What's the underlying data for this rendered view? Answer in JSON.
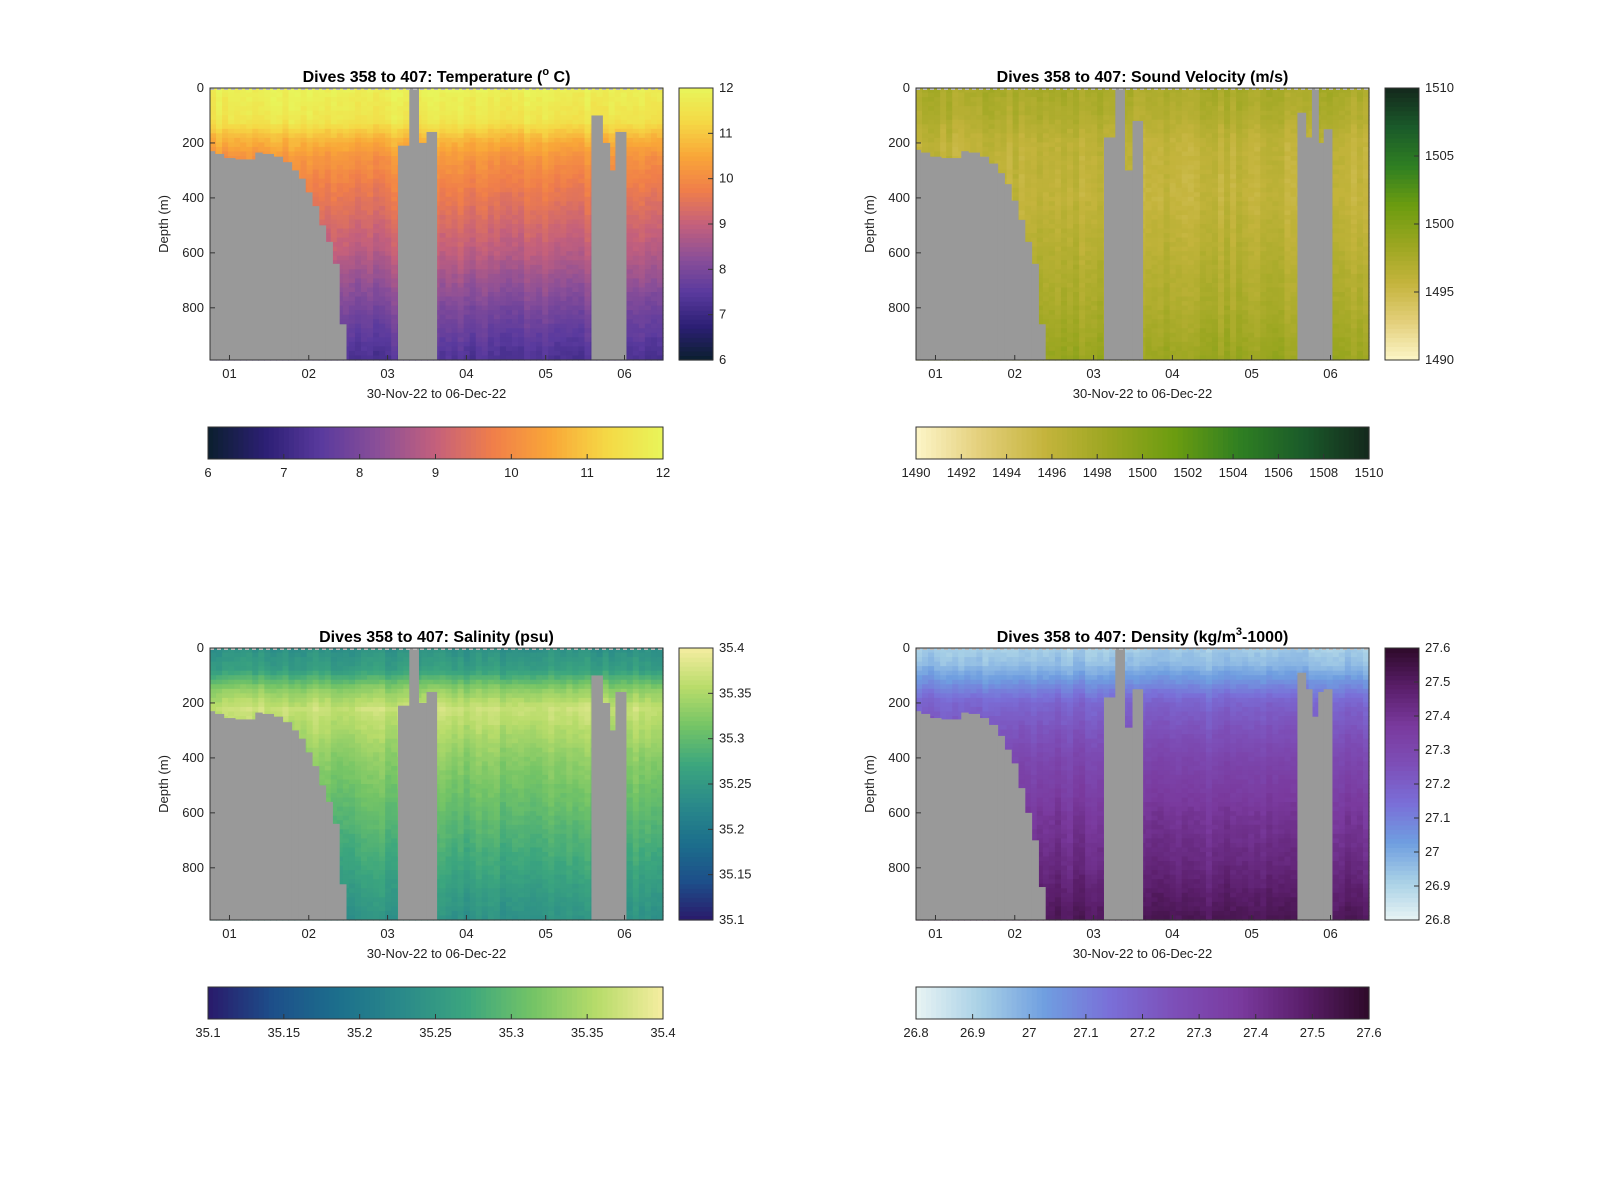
{
  "figure": {
    "layout": "2x2 grid of depth-time sections, each with a vertical and a horizontal colorbar",
    "land_color": "#999999"
  },
  "chart_data": [
    {
      "type": "heatmap",
      "id": "temperature",
      "title": "Dives 358 to 407: Temperature (",
      "title_unit_sup": "o",
      "title_tail": " C)",
      "xlabel": "30-Nov-22 to 06-Dec-22",
      "ylabel": "Depth (m)",
      "x_ticks": [
        "01",
        "02",
        "03",
        "04",
        "05",
        "06"
      ],
      "y_ticks": [
        0,
        200,
        400,
        600,
        800
      ],
      "ylim": [
        0,
        990
      ],
      "clim": [
        6,
        12
      ],
      "cbar_v_ticks": [
        "6",
        "7",
        "8",
        "9",
        "10",
        "11",
        "12"
      ],
      "cbar_h_ticks": [
        "6",
        "7",
        "8",
        "9",
        "10",
        "11",
        "12"
      ],
      "colormap": [
        "#0a1f2e",
        "#2c1f74",
        "#5a3a9e",
        "#8b4f98",
        "#c4607c",
        "#f07e4a",
        "#f9a638",
        "#f5d845",
        "#e8f55a"
      ],
      "profile": {
        "depths": [
          0,
          120,
          180,
          250,
          400,
          600,
          800,
          990
        ],
        "values": [
          11.9,
          11.6,
          10.8,
          10.2,
          9.6,
          8.9,
          8.0,
          7.3
        ]
      },
      "masks": "ctd"
    },
    {
      "type": "heatmap",
      "id": "sound-velocity",
      "title": "Dives 358 to 407: Sound Velocity (m/s)",
      "xlabel": "30-Nov-22 to 06-Dec-22",
      "ylabel": "Depth (m)",
      "x_ticks": [
        "01",
        "02",
        "03",
        "04",
        "05",
        "06"
      ],
      "y_ticks": [
        0,
        200,
        400,
        600,
        800
      ],
      "ylim": [
        0,
        990
      ],
      "clim": [
        1490,
        1510
      ],
      "cbar_v_ticks": [
        "1490",
        "1495",
        "1500",
        "1505",
        "1510"
      ],
      "cbar_h_ticks": [
        "1490",
        "1492",
        "1494",
        "1496",
        "1498",
        "1500",
        "1502",
        "1504",
        "1506",
        "1508",
        "1510"
      ],
      "colormap": [
        "#fdf6c8",
        "#e3cf7a",
        "#c4b43c",
        "#9aa620",
        "#6b9c10",
        "#2f7f22",
        "#1a5a2a",
        "#14281c"
      ],
      "profile": {
        "depths": [
          0,
          100,
          200,
          400,
          600,
          800,
          990
        ],
        "values": [
          1497.5,
          1497.0,
          1496.0,
          1495.8,
          1496.6,
          1497.4,
          1498.6
        ]
      },
      "masks": "sv"
    },
    {
      "type": "heatmap",
      "id": "salinity",
      "title": "Dives 358 to 407: Salinity (psu)",
      "xlabel": "30-Nov-22 to 06-Dec-22",
      "ylabel": "Depth (m)",
      "x_ticks": [
        "01",
        "02",
        "03",
        "04",
        "05",
        "06"
      ],
      "y_ticks": [
        0,
        200,
        400,
        600,
        800
      ],
      "ylim": [
        0,
        990
      ],
      "clim": [
        35.1,
        35.4
      ],
      "cbar_v_ticks": [
        "35.1",
        "35.15",
        "35.2",
        "35.25",
        "35.3",
        "35.35",
        "35.4"
      ],
      "cbar_h_ticks": [
        "35.1",
        "35.15",
        "35.2",
        "35.25",
        "35.3",
        "35.35",
        "35.4"
      ],
      "colormap": [
        "#2a1a6b",
        "#1d4f8a",
        "#1c6f8c",
        "#2a8a8a",
        "#3ca67e",
        "#74c466",
        "#b8dc6a",
        "#f5eda0"
      ],
      "profile": {
        "depths": [
          0,
          80,
          150,
          220,
          400,
          600,
          800,
          990
        ],
        "values": [
          35.24,
          35.26,
          35.33,
          35.37,
          35.33,
          35.3,
          35.27,
          35.24
        ]
      },
      "masks": "ctd"
    },
    {
      "type": "heatmap",
      "id": "density",
      "title": "Dives 358 to 407: Density (kg/m",
      "title_unit_sup": "3",
      "title_tail": "-1000)",
      "xlabel": "30-Nov-22 to 06-Dec-22",
      "ylabel": "Depth (m)",
      "x_ticks": [
        "01",
        "02",
        "03",
        "04",
        "05",
        "06"
      ],
      "y_ticks": [
        0,
        200,
        400,
        600,
        800
      ],
      "ylim": [
        0,
        990
      ],
      "clim": [
        26.8,
        27.6
      ],
      "cbar_v_ticks": [
        "26.8",
        "26.9",
        "27",
        "27.1",
        "27.2",
        "27.3",
        "27.4",
        "27.5",
        "27.6"
      ],
      "cbar_h_ticks": [
        "26.8",
        "26.9",
        "27",
        "27.1",
        "27.2",
        "27.3",
        "27.4",
        "27.5",
        "27.6"
      ],
      "colormap": [
        "#e8f4f4",
        "#a8d0e6",
        "#6f9ee0",
        "#7a6fd8",
        "#7d4fb8",
        "#7a3a9e",
        "#5a1e6a",
        "#2e0a2a"
      ],
      "profile": {
        "depths": [
          0,
          60,
          120,
          200,
          400,
          600,
          800,
          990
        ],
        "values": [
          26.92,
          26.96,
          27.05,
          27.18,
          27.3,
          27.38,
          27.44,
          27.52
        ]
      },
      "masks": "density"
    }
  ]
}
